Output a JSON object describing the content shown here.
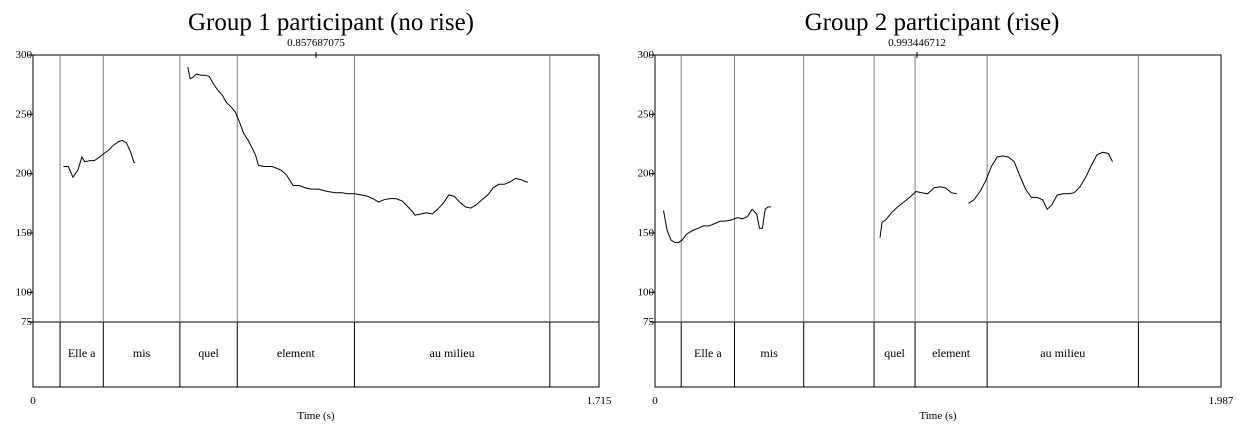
{
  "chart_data": [
    {
      "type": "line",
      "title": "Group 1 participant (no rise)",
      "cursor_label": "0.857687075",
      "xlabel": "Time (s)",
      "x_start_label": "0",
      "x_end_label": "1.715",
      "xlim": [
        0,
        1.715
      ],
      "ylim": [
        75,
        300
      ],
      "yticks": [
        {
          "v": 300,
          "label": "300"
        },
        {
          "v": 250,
          "label": "250"
        },
        {
          "v": 200,
          "label": "200"
        },
        {
          "v": 150,
          "label": "150"
        },
        {
          "v": 100,
          "label": "100"
        },
        {
          "v": 75,
          "label": "75"
        }
      ],
      "boundaries": [
        0.082,
        0.213,
        0.445,
        0.619,
        0.974,
        1.566
      ],
      "intervals": [
        {
          "start": 0.082,
          "end": 0.213,
          "label": "Elle a"
        },
        {
          "start": 0.213,
          "end": 0.445,
          "label": "mis"
        },
        {
          "start": 0.445,
          "end": 0.619,
          "label": "quel"
        },
        {
          "start": 0.619,
          "end": 0.974,
          "label": "element"
        },
        {
          "start": 0.974,
          "end": 1.566,
          "label": "au milieu"
        }
      ],
      "series": [
        {
          "segments": [
            [
              [
                0.092,
                206
              ],
              [
                0.107,
                206
              ],
              [
                0.121,
                197
              ],
              [
                0.136,
                203
              ],
              [
                0.148,
                214
              ],
              [
                0.157,
                210
              ],
              [
                0.172,
                211
              ],
              [
                0.186,
                211
              ],
              [
                0.201,
                214
              ],
              [
                0.215,
                217
              ],
              [
                0.23,
                220
              ],
              [
                0.244,
                224
              ],
              [
                0.259,
                227
              ],
              [
                0.271,
                228
              ],
              [
                0.283,
                226
              ],
              [
                0.296,
                218
              ],
              [
                0.305,
                210
              ],
              [
                0.31,
                209
              ]
            ],
            [
              [
                0.469,
                290
              ],
              [
                0.476,
                280
              ],
              [
                0.484,
                281
              ],
              [
                0.495,
                284
              ],
              [
                0.509,
                283
              ],
              [
                0.522,
                283
              ],
              [
                0.534,
                282
              ],
              [
                0.546,
                276
              ],
              [
                0.561,
                270
              ],
              [
                0.574,
                266
              ],
              [
                0.586,
                260
              ],
              [
                0.601,
                256
              ],
              [
                0.613,
                252
              ],
              [
                0.625,
                244
              ],
              [
                0.638,
                234
              ],
              [
                0.652,
                228
              ],
              [
                0.667,
                220
              ],
              [
                0.675,
                215
              ],
              [
                0.683,
                207
              ],
              [
                0.7,
                206
              ],
              [
                0.725,
                206
              ],
              [
                0.751,
                203
              ],
              [
                0.768,
                199
              ],
              [
                0.777,
                195
              ],
              [
                0.788,
                190
              ],
              [
                0.807,
                190
              ],
              [
                0.825,
                188
              ],
              [
                0.842,
                187
              ],
              [
                0.865,
                187
              ],
              [
                0.892,
                185
              ],
              [
                0.918,
                184
              ],
              [
                0.937,
                184
              ],
              [
                0.953,
                183
              ],
              [
                0.974,
                183
              ],
              [
                0.996,
                182
              ],
              [
                1.013,
                181
              ],
              [
                1.03,
                179
              ],
              [
                1.047,
                176
              ],
              [
                1.063,
                178
              ],
              [
                1.08,
                179
              ],
              [
                1.1,
                179
              ],
              [
                1.119,
                177
              ],
              [
                1.136,
                172
              ],
              [
                1.15,
                168
              ],
              [
                1.157,
                165
              ],
              [
                1.175,
                166
              ],
              [
                1.192,
                167
              ],
              [
                1.21,
                166
              ],
              [
                1.226,
                170
              ],
              [
                1.243,
                175
              ],
              [
                1.26,
                182
              ],
              [
                1.276,
                181
              ],
              [
                1.293,
                176
              ],
              [
                1.31,
                172
              ],
              [
                1.327,
                171
              ],
              [
                1.344,
                174
              ],
              [
                1.36,
                178
              ],
              [
                1.378,
                182
              ],
              [
                1.394,
                188
              ],
              [
                1.411,
                191
              ],
              [
                1.428,
                191
              ],
              [
                1.445,
                193
              ],
              [
                1.462,
                196
              ],
              [
                1.478,
                195
              ],
              [
                1.495,
                193
              ],
              [
                1.5,
                193
              ]
            ]
          ]
        }
      ]
    },
    {
      "type": "line",
      "title": "Group 2 participant (rise)",
      "cursor_label": "0.993446712",
      "xlabel": "Time (s)",
      "x_start_label": "0",
      "x_end_label": "1.987",
      "xlim": [
        0,
        1.987
      ],
      "ylim": [
        75,
        300
      ],
      "yticks": [
        {
          "v": 300,
          "label": "300"
        },
        {
          "v": 250,
          "label": "250"
        },
        {
          "v": 200,
          "label": "200"
        },
        {
          "v": 150,
          "label": "150"
        },
        {
          "v": 100,
          "label": "100"
        },
        {
          "v": 75,
          "label": "75"
        }
      ],
      "boundaries": [
        0.092,
        0.279,
        0.522,
        0.769,
        0.913,
        1.166,
        1.697
      ],
      "intervals": [
        {
          "start": 0.092,
          "end": 0.279,
          "label": "Elle a"
        },
        {
          "start": 0.279,
          "end": 0.522,
          "label": "mis"
        },
        {
          "start": 0.522,
          "end": 0.769,
          "label": ""
        },
        {
          "start": 0.769,
          "end": 0.913,
          "label": "quel"
        },
        {
          "start": 0.913,
          "end": 1.166,
          "label": "element"
        },
        {
          "start": 1.166,
          "end": 1.697,
          "label": "au milieu"
        }
      ],
      "series": [
        {
          "segments": [
            [
              [
                0.03,
                169
              ],
              [
                0.043,
                152
              ],
              [
                0.056,
                144
              ],
              [
                0.069,
                142
              ],
              [
                0.082,
                142
              ],
              [
                0.095,
                144
              ],
              [
                0.111,
                149
              ],
              [
                0.131,
                152
              ],
              [
                0.151,
                154
              ],
              [
                0.17,
                156
              ],
              [
                0.19,
                156
              ],
              [
                0.21,
                158
              ],
              [
                0.23,
                160
              ],
              [
                0.249,
                160
              ],
              [
                0.269,
                161
              ],
              [
                0.289,
                163
              ],
              [
                0.308,
                162
              ],
              [
                0.325,
                164
              ],
              [
                0.341,
                170
              ],
              [
                0.357,
                166
              ],
              [
                0.367,
                154
              ],
              [
                0.377,
                154
              ],
              [
                0.387,
                170
              ],
              [
                0.397,
                172
              ],
              [
                0.407,
                172
              ]
            ],
            [
              [
                0.79,
                146
              ],
              [
                0.797,
                159
              ],
              [
                0.81,
                161
              ],
              [
                0.83,
                167
              ],
              [
                0.852,
                172
              ],
              [
                0.873,
                176
              ],
              [
                0.894,
                180
              ],
              [
                0.916,
                185
              ],
              [
                0.936,
                184
              ],
              [
                0.957,
                183
              ],
              [
                0.979,
                188
              ],
              [
                0.999,
                189
              ],
              [
                1.02,
                188
              ],
              [
                1.04,
                184
              ],
              [
                1.06,
                183
              ]
            ],
            [
              [
                1.101,
                175
              ],
              [
                1.12,
                178
              ],
              [
                1.141,
                185
              ],
              [
                1.161,
                194
              ],
              [
                1.181,
                206
              ],
              [
                1.201,
                214
              ],
              [
                1.221,
                215
              ],
              [
                1.241,
                214
              ],
              [
                1.261,
                210
              ],
              [
                1.281,
                198
              ],
              [
                1.301,
                187
              ],
              [
                1.321,
                180
              ],
              [
                1.341,
                180
              ],
              [
                1.361,
                178
              ],
              [
                1.377,
                170
              ],
              [
                1.394,
                174
              ],
              [
                1.412,
                182
              ],
              [
                1.432,
                183
              ],
              [
                1.452,
                183
              ],
              [
                1.472,
                184
              ],
              [
                1.492,
                189
              ],
              [
                1.512,
                197
              ],
              [
                1.532,
                207
              ],
              [
                1.552,
                216
              ],
              [
                1.572,
                218
              ],
              [
                1.592,
                217
              ],
              [
                1.606,
                210
              ]
            ]
          ]
        }
      ]
    }
  ]
}
